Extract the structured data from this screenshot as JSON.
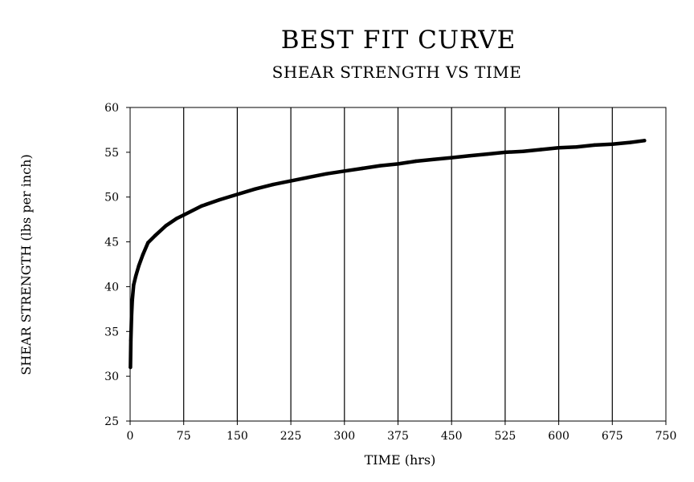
{
  "chart_data": {
    "type": "line",
    "title": "BEST FIT CURVE",
    "subtitle": "SHEAR STRENGTH VS TIME",
    "xlabel": "TIME (hrs)",
    "ylabel": "SHEAR STRENGTH (lbs per inch)",
    "xlim": [
      0,
      750
    ],
    "ylim": [
      25,
      60
    ],
    "x_ticks": [
      0,
      75,
      150,
      225,
      300,
      375,
      450,
      525,
      600,
      675,
      750
    ],
    "x_tick_labels": [
      "0",
      "75",
      "150",
      "225",
      "300",
      "375",
      "450",
      "525",
      "600",
      "675",
      "750"
    ],
    "y_ticks": [
      25,
      30,
      35,
      40,
      45,
      50,
      55,
      60
    ],
    "y_tick_labels": [
      "25",
      "30",
      "35",
      "40",
      "45",
      "50",
      "55",
      "60"
    ],
    "grid": "vertical",
    "legend": "none",
    "series": [
      {
        "x": [
          0.5,
          1,
          2,
          3,
          5,
          8,
          12,
          18,
          25,
          35,
          50,
          65,
          75,
          100,
          125,
          150,
          175,
          200,
          225,
          250,
          275,
          300,
          325,
          350,
          375,
          400,
          425,
          450,
          475,
          500,
          525,
          550,
          575,
          600,
          625,
          650,
          675,
          700,
          720
        ],
        "y": [
          31.0,
          34.0,
          36.8,
          38.5,
          40.2,
          41.2,
          42.3,
          43.6,
          44.9,
          45.7,
          46.8,
          47.6,
          48.0,
          49.0,
          49.7,
          50.3,
          50.9,
          51.4,
          51.8,
          52.2,
          52.6,
          52.9,
          53.2,
          53.5,
          53.7,
          54.0,
          54.2,
          54.4,
          54.6,
          54.8,
          55.0,
          55.1,
          55.3,
          55.5,
          55.6,
          55.8,
          55.9,
          56.1,
          56.3
        ]
      }
    ]
  }
}
